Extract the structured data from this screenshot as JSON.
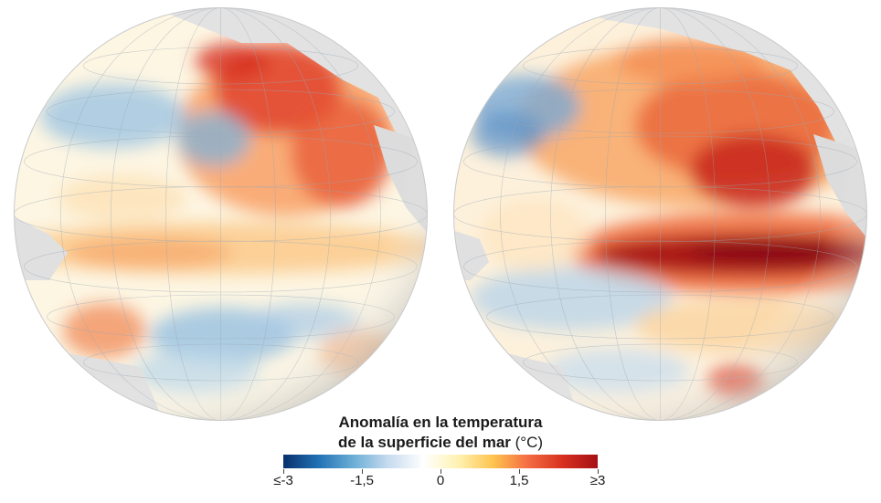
{
  "maps": [
    {
      "name": "sea-surface-temperature-anomaly-globe-1"
    },
    {
      "name": "sea-surface-temperature-anomaly-globe-2"
    }
  ],
  "legend": {
    "title_line1": "Anomalía en la temperatura",
    "title_line2": "de la superficie del mar",
    "unit": "(°C)",
    "ticks": [
      "≤-3",
      "-1,5",
      "0",
      "1,5",
      "≥3"
    ],
    "range": [
      -3,
      3
    ],
    "colors": [
      "#08306b",
      "#2171b5",
      "#6baed6",
      "#c6dbef",
      "#ffffff",
      "#fff2b3",
      "#fec44f",
      "#f46d43",
      "#d7301f",
      "#a50f15"
    ]
  }
}
